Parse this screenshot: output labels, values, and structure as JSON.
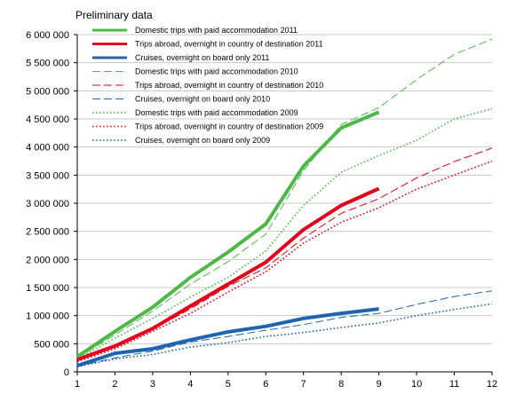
{
  "chart_data": {
    "type": "line",
    "subtitle": "Preliminary data",
    "title": "",
    "xlabel": "",
    "ylabel": "",
    "x": [
      1,
      2,
      3,
      4,
      5,
      6,
      7,
      8,
      9,
      10,
      11,
      12
    ],
    "xlim": [
      1,
      12
    ],
    "ylim": [
      0,
      6000000
    ],
    "y_ticks": [
      0,
      500000,
      1000000,
      1500000,
      2000000,
      2500000,
      3000000,
      3500000,
      4000000,
      4500000,
      5000000,
      5500000,
      6000000
    ],
    "y_tick_labels": [
      "0",
      "500 000",
      "1 000 000",
      "1 500 000",
      "2 000 000",
      "2 500 000",
      "3 000 000",
      "3 500 000",
      "4 000 000",
      "4 500 000",
      "5 000 000",
      "5 500 000",
      "6 000 000"
    ],
    "x_tick_labels": [
      "1",
      "2",
      "3",
      "4",
      "5",
      "6",
      "7",
      "8",
      "9",
      "10",
      "11",
      "12"
    ],
    "grid": "horizontal",
    "legend_position": "top-left",
    "series": [
      {
        "name": "Domestic trips with paid accommodation 2011",
        "color": "#4db848",
        "style": "solid",
        "width": 4,
        "values": [
          270000,
          720000,
          1150000,
          1680000,
          2130000,
          2630000,
          3660000,
          4340000,
          4620000,
          null,
          null,
          null
        ]
      },
      {
        "name": "Trips abroad, overnight in country of destination 2011",
        "color": "#e2001a",
        "style": "solid",
        "width": 4,
        "values": [
          220000,
          460000,
          770000,
          1170000,
          1560000,
          1950000,
          2530000,
          2960000,
          3260000,
          null,
          null,
          null
        ]
      },
      {
        "name": "Cruises, overnight on board only 2011",
        "color": "#1f64b0",
        "style": "solid",
        "width": 4,
        "values": [
          110000,
          330000,
          410000,
          570000,
          710000,
          810000,
          950000,
          1040000,
          1120000,
          null,
          null,
          null
        ]
      },
      {
        "name": "Domestic trips with paid accommodation 2010",
        "color": "#4db848",
        "style": "dashed",
        "width": 1,
        "values": [
          250000,
          660000,
          1080000,
          1560000,
          1960000,
          2450000,
          3580000,
          4400000,
          4700000,
          5200000,
          5650000,
          5920000
        ]
      },
      {
        "name": "Trips abroad, overnight in country of destination 2010",
        "color": "#e2001a",
        "style": "dashed",
        "width": 1,
        "values": [
          200000,
          440000,
          760000,
          1120000,
          1520000,
          1850000,
          2380000,
          2820000,
          3080000,
          3450000,
          3740000,
          3980000
        ]
      },
      {
        "name": "Cruises, overnight on board only 2010",
        "color": "#1f64b0",
        "style": "dashed",
        "width": 1,
        "values": [
          100000,
          250000,
          370000,
          530000,
          630000,
          740000,
          840000,
          970000,
          1040000,
          1200000,
          1340000,
          1440000
        ]
      },
      {
        "name": "Domestic trips with paid accommodation 2009",
        "color": "#4db848",
        "style": "dotted",
        "width": 1.6,
        "values": [
          230000,
          600000,
          950000,
          1330000,
          1680000,
          2150000,
          2960000,
          3550000,
          3850000,
          4120000,
          4500000,
          4680000
        ]
      },
      {
        "name": "Trips abroad, overnight in country of destination 2009",
        "color": "#e2001a",
        "style": "dotted",
        "width": 1.6,
        "values": [
          180000,
          410000,
          720000,
          1040000,
          1420000,
          1780000,
          2290000,
          2660000,
          2920000,
          3250000,
          3500000,
          3750000
        ]
      },
      {
        "name": "Cruises, overnight on board only 2009",
        "color": "#1f64b0",
        "style": "dotted",
        "width": 1.6,
        "values": [
          90000,
          230000,
          310000,
          440000,
          520000,
          630000,
          700000,
          790000,
          870000,
          1000000,
          1110000,
          1210000
        ]
      }
    ]
  }
}
